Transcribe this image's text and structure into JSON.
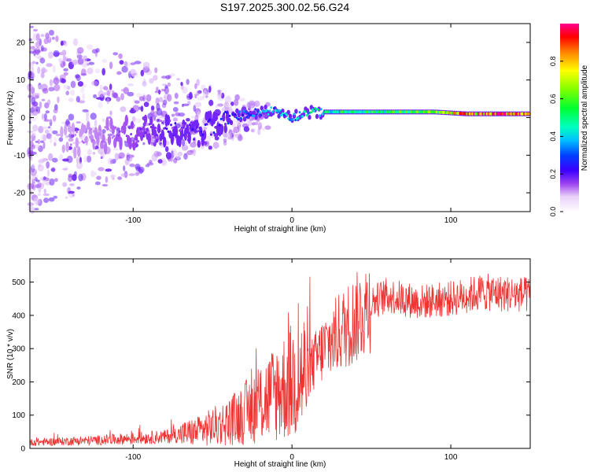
{
  "title": "S197.2025.300.02.56.G24",
  "chart_data": [
    {
      "type": "heatmap",
      "xlabel": "Height of straight line (km)",
      "ylabel": "Frequency (Hz)",
      "xlim": [
        -165,
        150
      ],
      "ylim": [
        -25,
        25
      ],
      "xticks": [
        -100,
        0,
        100
      ],
      "yticks": [
        -20,
        -10,
        0,
        10,
        20
      ],
      "colorbar": {
        "label": "Normalized spectral amplitude",
        "range": [
          0,
          1
        ],
        "ticks": [
          0.0,
          0.2,
          0.4,
          0.6,
          0.8
        ],
        "tick_labels": [
          "0.0",
          "0.2",
          "0.4",
          "0.6",
          "0.8"
        ]
      },
      "ridge": {
        "x": [
          -140,
          -120,
          -100,
          -80,
          -60,
          -45,
          -30,
          -20,
          -10,
          0,
          10,
          30,
          60,
          90,
          110,
          150
        ],
        "freq": [
          -6,
          -5,
          -4,
          -3,
          -4,
          -1,
          1,
          1.5,
          2,
          0,
          1.5,
          1.5,
          1.5,
          1.5,
          1,
          1
        ],
        "amplitude": [
          0.1,
          0.12,
          0.15,
          0.18,
          0.2,
          0.25,
          0.3,
          0.35,
          0.4,
          0.35,
          0.45,
          0.5,
          0.55,
          0.6,
          0.85,
          0.95
        ]
      }
    },
    {
      "type": "line",
      "xlabel": "Height of straight line (km)",
      "ylabel": "SNR (10 * v/v)",
      "xlim": [
        -165,
        150
      ],
      "ylim": [
        0,
        570
      ],
      "xticks": [
        -100,
        0,
        100
      ],
      "yticks": [
        0,
        100,
        200,
        300,
        400,
        500
      ],
      "color": "#ee3333",
      "trend": {
        "x": [
          -165,
          -120,
          -80,
          -60,
          -40,
          -25,
          -10,
          0,
          10,
          20,
          30,
          40,
          50,
          60,
          80,
          100,
          120,
          150
        ],
        "snr": [
          18,
          25,
          35,
          50,
          80,
          120,
          170,
          200,
          230,
          300,
          350,
          390,
          440,
          460,
          440,
          450,
          470,
          460
        ]
      }
    }
  ]
}
